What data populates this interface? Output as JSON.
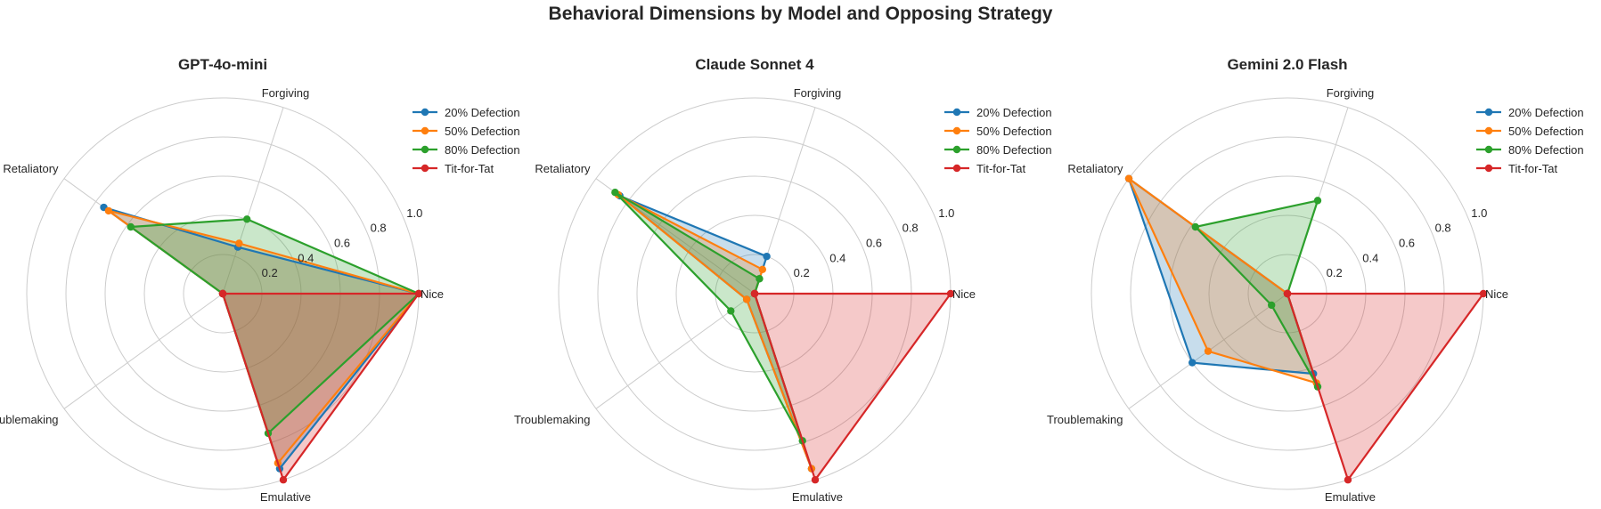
{
  "title": "Behavioral Dimensions by Model and Opposing Strategy",
  "chart_data": [
    {
      "type": "radar",
      "title": "GPT-4o-mini",
      "axes": [
        "Nice",
        "Forgiving",
        "Retaliatory",
        "Troublemaking",
        "Emulative"
      ],
      "rlim": [
        0,
        1.0
      ],
      "rticks": [
        "0.2",
        "0.4",
        "0.6",
        "0.8",
        "1.0"
      ],
      "legend_position": "upper-right",
      "series": [
        {
          "name": "20% Defection",
          "color": "#1f77b4",
          "values": [
            1.0,
            0.25,
            0.75,
            0.0,
            0.94
          ]
        },
        {
          "name": "50% Defection",
          "color": "#ff7f0e",
          "values": [
            1.0,
            0.27,
            0.72,
            0.0,
            0.91
          ]
        },
        {
          "name": "80% Defection",
          "color": "#2ca02c",
          "values": [
            1.0,
            0.4,
            0.58,
            0.0,
            0.75
          ]
        },
        {
          "name": "Tit-for-Tat",
          "color": "#d62728",
          "values": [
            1.0,
            0.0,
            0.0,
            0.0,
            1.0
          ]
        }
      ]
    },
    {
      "type": "radar",
      "title": "Claude Sonnet 4",
      "axes": [
        "Nice",
        "Forgiving",
        "Retaliatory",
        "Troublemaking",
        "Emulative"
      ],
      "rlim": [
        0,
        1.0
      ],
      "rticks": [
        "0.2",
        "0.4",
        "0.6",
        "0.8",
        "1.0"
      ],
      "legend_position": "upper-right",
      "series": [
        {
          "name": "20% Defection",
          "color": "#1f77b4",
          "values": [
            0.0,
            0.2,
            0.85,
            0.05,
            0.94
          ]
        },
        {
          "name": "50% Defection",
          "color": "#ff7f0e",
          "values": [
            0.0,
            0.13,
            0.86,
            0.05,
            0.94
          ]
        },
        {
          "name": "80% Defection",
          "color": "#2ca02c",
          "values": [
            0.0,
            0.08,
            0.88,
            0.15,
            0.79
          ]
        },
        {
          "name": "Tit-for-Tat",
          "color": "#d62728",
          "values": [
            1.0,
            0.0,
            0.0,
            0.0,
            1.0
          ]
        }
      ]
    },
    {
      "type": "radar",
      "title": "Gemini 2.0 Flash",
      "axes": [
        "Nice",
        "Forgiving",
        "Retaliatory",
        "Troublemaking",
        "Emulative"
      ],
      "rlim": [
        0,
        1.0
      ],
      "rticks": [
        "0.2",
        "0.4",
        "0.6",
        "0.8",
        "1.0"
      ],
      "legend_position": "upper-right",
      "series": [
        {
          "name": "20% Defection",
          "color": "#1f77b4",
          "values": [
            0.0,
            0.0,
            1.0,
            0.6,
            0.43
          ]
        },
        {
          "name": "50% Defection",
          "color": "#ff7f0e",
          "values": [
            0.0,
            0.0,
            1.0,
            0.5,
            0.48
          ]
        },
        {
          "name": "80% Defection",
          "color": "#2ca02c",
          "values": [
            0.0,
            0.5,
            0.58,
            0.1,
            0.5
          ]
        },
        {
          "name": "Tit-for-Tat",
          "color": "#d62728",
          "values": [
            1.0,
            0.0,
            0.0,
            0.0,
            1.0
          ]
        }
      ]
    }
  ]
}
